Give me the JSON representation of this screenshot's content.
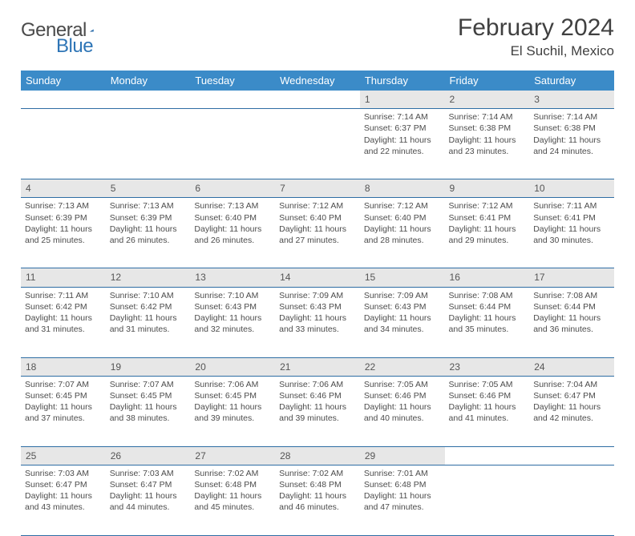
{
  "brand": {
    "part1": "General",
    "part2": "Blue"
  },
  "title": "February 2024",
  "location": "El Suchil, Mexico",
  "colors": {
    "header_bg": "#3b8bc8",
    "header_text": "#ffffff",
    "daynum_bg": "#e7e7e7",
    "row_border": "#2e6da4",
    "text": "#4c4c4c",
    "brand_blue": "#2e75b6"
  },
  "day_headers": [
    "Sunday",
    "Monday",
    "Tuesday",
    "Wednesday",
    "Thursday",
    "Friday",
    "Saturday"
  ],
  "weeks": [
    [
      null,
      null,
      null,
      null,
      {
        "n": "1",
        "sunrise": "7:14 AM",
        "sunset": "6:37 PM",
        "dl": "11 hours and 22 minutes."
      },
      {
        "n": "2",
        "sunrise": "7:14 AM",
        "sunset": "6:38 PM",
        "dl": "11 hours and 23 minutes."
      },
      {
        "n": "3",
        "sunrise": "7:14 AM",
        "sunset": "6:38 PM",
        "dl": "11 hours and 24 minutes."
      }
    ],
    [
      {
        "n": "4",
        "sunrise": "7:13 AM",
        "sunset": "6:39 PM",
        "dl": "11 hours and 25 minutes."
      },
      {
        "n": "5",
        "sunrise": "7:13 AM",
        "sunset": "6:39 PM",
        "dl": "11 hours and 26 minutes."
      },
      {
        "n": "6",
        "sunrise": "7:13 AM",
        "sunset": "6:40 PM",
        "dl": "11 hours and 26 minutes."
      },
      {
        "n": "7",
        "sunrise": "7:12 AM",
        "sunset": "6:40 PM",
        "dl": "11 hours and 27 minutes."
      },
      {
        "n": "8",
        "sunrise": "7:12 AM",
        "sunset": "6:40 PM",
        "dl": "11 hours and 28 minutes."
      },
      {
        "n": "9",
        "sunrise": "7:12 AM",
        "sunset": "6:41 PM",
        "dl": "11 hours and 29 minutes."
      },
      {
        "n": "10",
        "sunrise": "7:11 AM",
        "sunset": "6:41 PM",
        "dl": "11 hours and 30 minutes."
      }
    ],
    [
      {
        "n": "11",
        "sunrise": "7:11 AM",
        "sunset": "6:42 PM",
        "dl": "11 hours and 31 minutes."
      },
      {
        "n": "12",
        "sunrise": "7:10 AM",
        "sunset": "6:42 PM",
        "dl": "11 hours and 31 minutes."
      },
      {
        "n": "13",
        "sunrise": "7:10 AM",
        "sunset": "6:43 PM",
        "dl": "11 hours and 32 minutes."
      },
      {
        "n": "14",
        "sunrise": "7:09 AM",
        "sunset": "6:43 PM",
        "dl": "11 hours and 33 minutes."
      },
      {
        "n": "15",
        "sunrise": "7:09 AM",
        "sunset": "6:43 PM",
        "dl": "11 hours and 34 minutes."
      },
      {
        "n": "16",
        "sunrise": "7:08 AM",
        "sunset": "6:44 PM",
        "dl": "11 hours and 35 minutes."
      },
      {
        "n": "17",
        "sunrise": "7:08 AM",
        "sunset": "6:44 PM",
        "dl": "11 hours and 36 minutes."
      }
    ],
    [
      {
        "n": "18",
        "sunrise": "7:07 AM",
        "sunset": "6:45 PM",
        "dl": "11 hours and 37 minutes."
      },
      {
        "n": "19",
        "sunrise": "7:07 AM",
        "sunset": "6:45 PM",
        "dl": "11 hours and 38 minutes."
      },
      {
        "n": "20",
        "sunrise": "7:06 AM",
        "sunset": "6:45 PM",
        "dl": "11 hours and 39 minutes."
      },
      {
        "n": "21",
        "sunrise": "7:06 AM",
        "sunset": "6:46 PM",
        "dl": "11 hours and 39 minutes."
      },
      {
        "n": "22",
        "sunrise": "7:05 AM",
        "sunset": "6:46 PM",
        "dl": "11 hours and 40 minutes."
      },
      {
        "n": "23",
        "sunrise": "7:05 AM",
        "sunset": "6:46 PM",
        "dl": "11 hours and 41 minutes."
      },
      {
        "n": "24",
        "sunrise": "7:04 AM",
        "sunset": "6:47 PM",
        "dl": "11 hours and 42 minutes."
      }
    ],
    [
      {
        "n": "25",
        "sunrise": "7:03 AM",
        "sunset": "6:47 PM",
        "dl": "11 hours and 43 minutes."
      },
      {
        "n": "26",
        "sunrise": "7:03 AM",
        "sunset": "6:47 PM",
        "dl": "11 hours and 44 minutes."
      },
      {
        "n": "27",
        "sunrise": "7:02 AM",
        "sunset": "6:48 PM",
        "dl": "11 hours and 45 minutes."
      },
      {
        "n": "28",
        "sunrise": "7:02 AM",
        "sunset": "6:48 PM",
        "dl": "11 hours and 46 minutes."
      },
      {
        "n": "29",
        "sunrise": "7:01 AM",
        "sunset": "6:48 PM",
        "dl": "11 hours and 47 minutes."
      },
      null,
      null
    ]
  ],
  "labels": {
    "sunrise": "Sunrise: ",
    "sunset": "Sunset: ",
    "daylight": "Daylight: "
  }
}
